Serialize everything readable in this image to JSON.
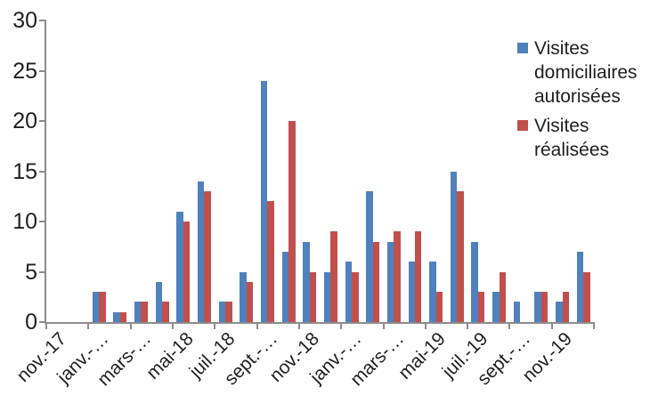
{
  "chart_data": {
    "type": "bar",
    "title": "",
    "grid": false,
    "legend_position": "top-right-inside",
    "axis_color": "#8C8C8C",
    "text_color": "#1F1F1F",
    "ylim": [
      0,
      30
    ],
    "y_ticks": [
      0,
      5,
      10,
      15,
      20,
      25,
      30
    ],
    "n_categories": 26,
    "tick_interval": 2,
    "x_tick_labels": [
      "nov.-17",
      "janv.-…",
      "mars-…",
      "mai-18",
      "juil.-18",
      "sept.-…",
      "nov.-18",
      "janv.-…",
      "mars-…",
      "mai-19",
      "juil.-19",
      "sept.-…",
      "nov.-19"
    ],
    "series": [
      {
        "name": "Visites domiciliaires autorisées",
        "color": "#4F81BD",
        "values": [
          0,
          0,
          3,
          1,
          2,
          4,
          11,
          14,
          2,
          5,
          24,
          7,
          8,
          5,
          6,
          13,
          8,
          6,
          6,
          15,
          8,
          3,
          2,
          3,
          2,
          7
        ]
      },
      {
        "name": "Visites réalisées",
        "color": "#C0504D",
        "values": [
          0,
          0,
          3,
          1,
          2,
          2,
          10,
          13,
          2,
          4,
          12,
          20,
          5,
          9,
          5,
          8,
          9,
          9,
          3,
          13,
          3,
          5,
          0,
          3,
          3,
          5
        ]
      }
    ]
  }
}
